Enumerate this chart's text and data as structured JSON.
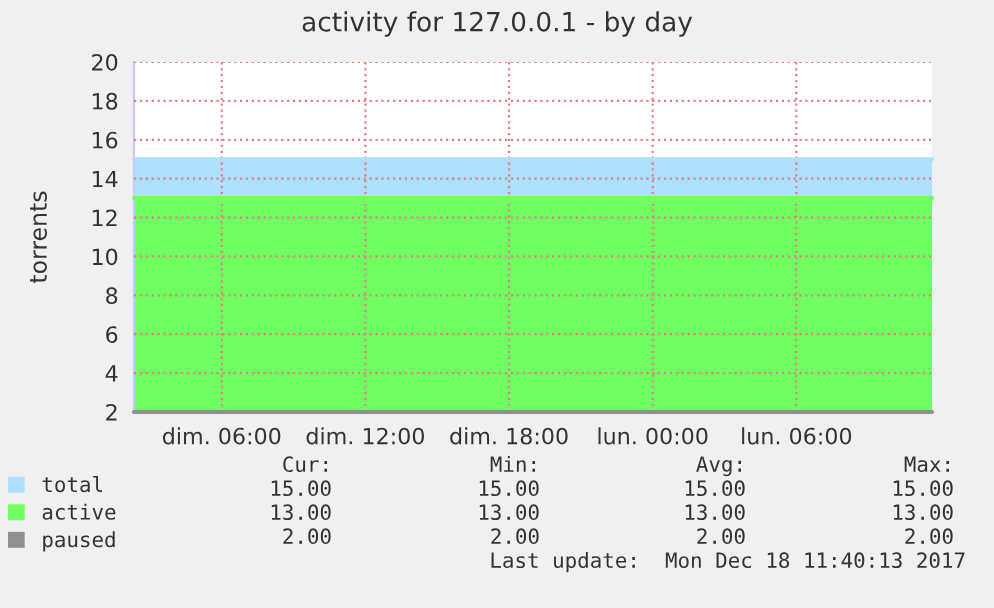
{
  "chart_data": {
    "type": "area",
    "title": "activity for 127.0.0.1 - by day",
    "ylabel": "torrents",
    "x": [
      "2017-12-17T02:20",
      "2017-12-18T11:40"
    ],
    "xlim": [
      "2017-12-17T02:20",
      "2017-12-18T11:40"
    ],
    "xticks": [
      {
        "value": "2017-12-17T06:00",
        "label": "dim. 06:00"
      },
      {
        "value": "2017-12-17T12:00",
        "label": "dim. 12:00"
      },
      {
        "value": "2017-12-17T18:00",
        "label": "dim. 18:00"
      },
      {
        "value": "2017-12-18T00:00",
        "label": "lun. 00:00"
      },
      {
        "value": "2017-12-18T06:00",
        "label": "lun. 06:00"
      }
    ],
    "ylim": [
      2,
      20
    ],
    "yticks": [
      2,
      4,
      6,
      8,
      10,
      12,
      14,
      16,
      18,
      20
    ],
    "series": [
      {
        "name": "total",
        "color": "#addfff",
        "values": [
          15,
          15
        ]
      },
      {
        "name": "active",
        "color": "#70ff60",
        "values": [
          13,
          13
        ]
      },
      {
        "name": "paused",
        "color": "#909090",
        "type": "line",
        "values": [
          2,
          2
        ]
      }
    ],
    "grid": true,
    "legend": "bottom left",
    "annotations": [
      "Cur:",
      "Min:",
      "Avg:",
      "Max:",
      "15.00",
      "15.00",
      "15.00",
      "15.00",
      "13.00",
      "13.00",
      "13.00",
      "13.00",
      "2.00",
      "2.00",
      "2.00",
      "2.00",
      "Last update:  Mon Dec 18 11:40:13 2017"
    ]
  }
}
